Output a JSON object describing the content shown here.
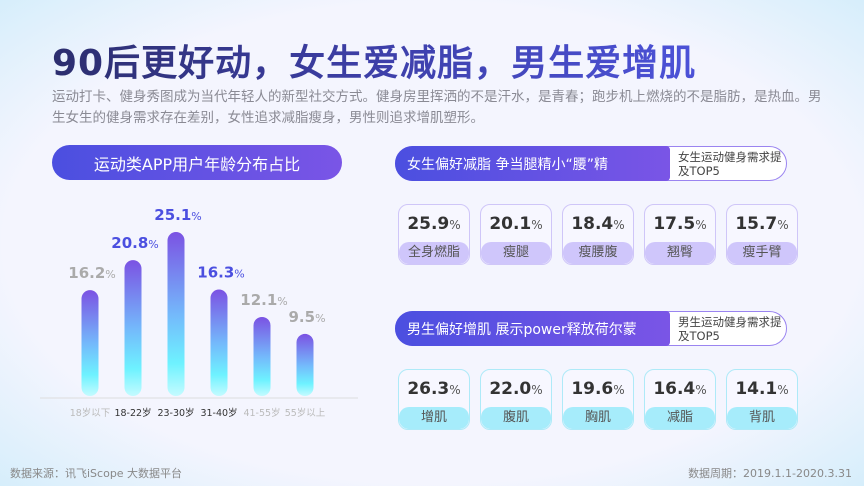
{
  "title": "90后更好动，女生爱减脂，男生爱增肌",
  "intro": "运动打卡、健身秀图成为当代年轻人的新型社交方式。健身房里挥洒的不是汗水，是青春；跑步机上燃烧的不是脂肪，是热血。男生女生的健身需求存在差别，女性追求减脂瘦身，男性则追求增肌塑形。",
  "chart_title": "运动类APP用户年龄分布占比",
  "chart_data": {
    "type": "bar",
    "title": "运动类APP用户年龄分布占比",
    "categories": [
      "18岁以下",
      "18-22岁",
      "23-30岁",
      "31-40岁",
      "41-55岁",
      "55岁以上"
    ],
    "values": [
      16.2,
      20.8,
      25.1,
      16.3,
      12.1,
      9.5
    ],
    "unit": "%",
    "highlighted": [
      false,
      true,
      true,
      true,
      false,
      false
    ],
    "ylim": [
      0,
      25.1
    ],
    "grid": false,
    "colors": {
      "bar_top": "#7b52e3",
      "bar_bottom": "#c4fbff",
      "highlight_label": "#4b4fe0",
      "muted_label": "#aaaaaa",
      "highlight_tick": "#333333",
      "muted_tick": "#bbbbbb"
    }
  },
  "female": {
    "heading": "女生偏好减脂 争当腿精小“腰”精",
    "side": "女生运动健身需求提及TOP5",
    "items": [
      {
        "value": "25.9",
        "label": "全身燃脂"
      },
      {
        "value": "20.1",
        "label": "瘦腿"
      },
      {
        "value": "18.4",
        "label": "瘦腰腹"
      },
      {
        "value": "17.5",
        "label": "翘臀"
      },
      {
        "value": "15.7",
        "label": "瘦手臂"
      }
    ]
  },
  "male": {
    "heading": "男生偏好增肌 展示power释放荷尔蒙",
    "side": "男生运动健身需求提及TOP5",
    "items": [
      {
        "value": "26.3",
        "label": "增肌"
      },
      {
        "value": "22.0",
        "label": "腹肌"
      },
      {
        "value": "19.6",
        "label": "胸肌"
      },
      {
        "value": "16.4",
        "label": "减脂"
      },
      {
        "value": "14.1",
        "label": "背肌"
      }
    ]
  },
  "percent": "%",
  "footer": {
    "source": "数据来源：讯飞iScope 大数据平台",
    "period": "数据周期：2019.1.1-2020.3.31"
  }
}
